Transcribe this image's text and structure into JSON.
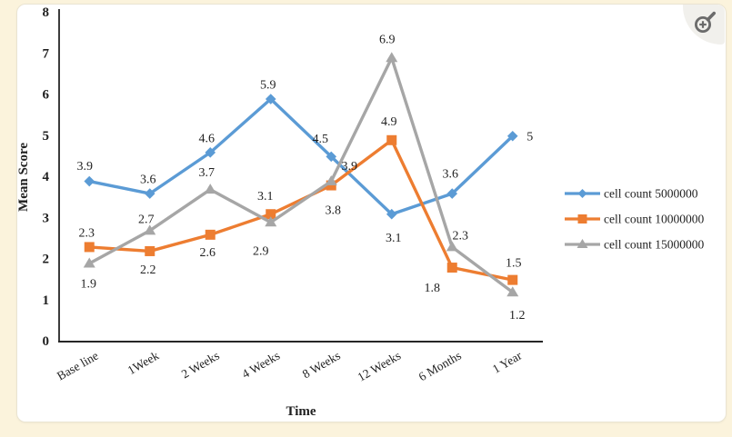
{
  "canvas": {
    "background": "#fbf3dc",
    "card_background": "#ffffff"
  },
  "toolbar": {
    "zoom_icon": "magnifier-plus",
    "zoom_icon_color": "#6b6b6b",
    "zoom_icon_bg": "#f1f0ec"
  },
  "chart_data": {
    "type": "line",
    "title": "",
    "xlabel": "Time",
    "ylabel": "Mean Score",
    "ylim": [
      0,
      8
    ],
    "y_tick_step": 1,
    "grid": false,
    "legend_position": "right",
    "data_labels_shown": true,
    "categories": [
      "Base line",
      "1Week",
      "2 Weeks",
      "4 Weeks",
      "8 Weeks",
      "12 Weeks",
      "6 Months",
      "1 Year"
    ],
    "axis_color": "#262626",
    "text_color": "#1f1f1f",
    "series": [
      {
        "name": "cell count 5000000",
        "color": "#5b9bd5",
        "marker": "diamond",
        "values": [
          3.9,
          3.6,
          4.6,
          5.9,
          4.5,
          3.1,
          3.6,
          5
        ],
        "label_offsets": [
          [
            -5,
            -16
          ],
          [
            -2,
            -15
          ],
          [
            -4,
            -15
          ],
          [
            -3,
            -15
          ],
          [
            -12,
            -19
          ],
          [
            2,
            27
          ],
          [
            -2,
            -21
          ],
          [
            19,
            1
          ]
        ]
      },
      {
        "name": "cell count 10000000",
        "color": "#ed7d31",
        "marker": "square",
        "values": [
          2.3,
          2.2,
          2.6,
          3.1,
          3.8,
          4.9,
          1.8,
          1.5
        ],
        "label_offsets": [
          [
            -3,
            -15
          ],
          [
            -2,
            21
          ],
          [
            -3,
            20
          ],
          [
            -6,
            -19
          ],
          [
            2,
            28
          ],
          [
            -3,
            -20
          ],
          [
            -22,
            23
          ],
          [
            1,
            -18
          ]
        ]
      },
      {
        "name": "cell count 15000000",
        "color": "#a6a6a6",
        "marker": "triangle",
        "values": [
          1.9,
          2.7,
          3.7,
          2.9,
          3.9,
          6.9,
          2.3,
          1.2
        ],
        "label_offsets": [
          [
            -1,
            23
          ],
          [
            -4,
            -12
          ],
          [
            -4,
            -18
          ],
          [
            -11,
            32
          ],
          [
            20,
            -16
          ],
          [
            -5,
            -20
          ],
          [
            9,
            -12
          ],
          [
            5,
            26
          ]
        ]
      }
    ]
  }
}
